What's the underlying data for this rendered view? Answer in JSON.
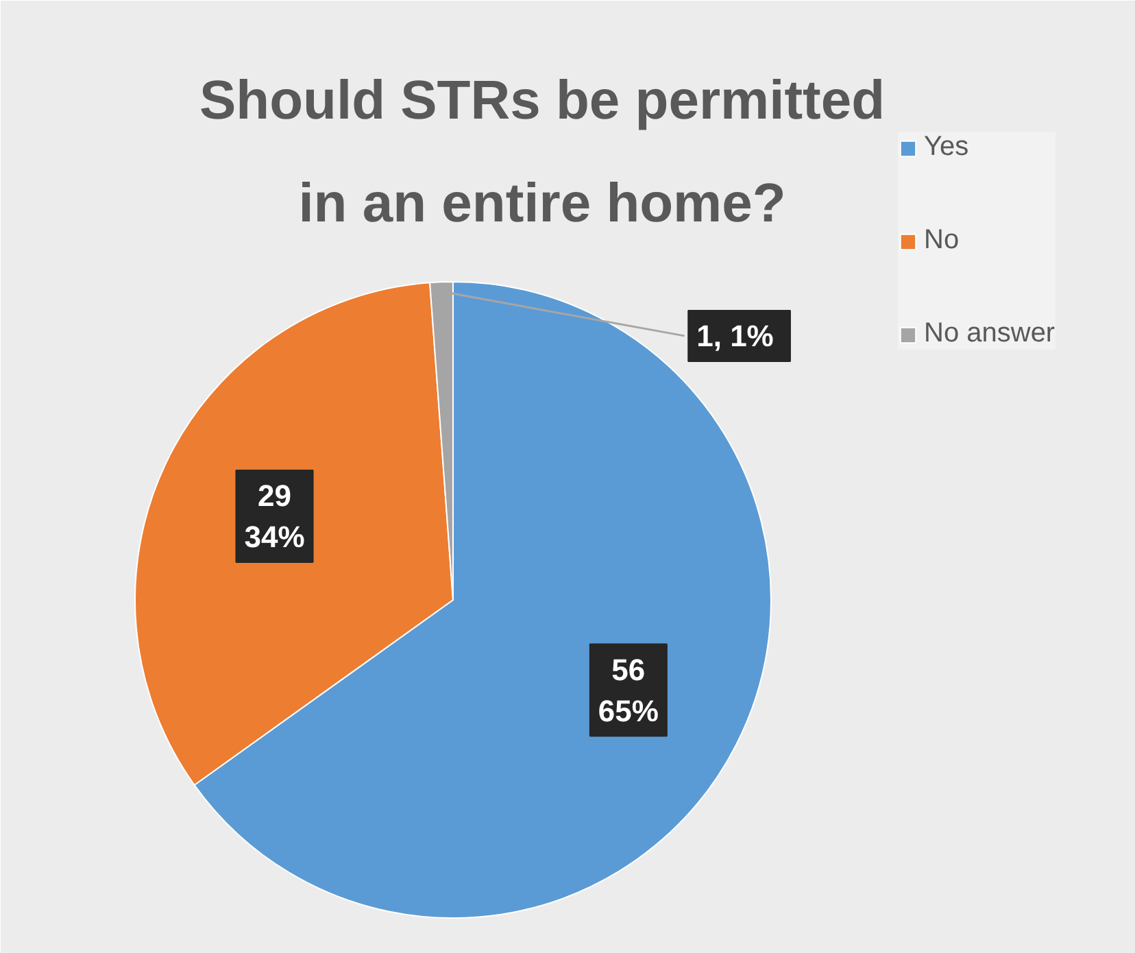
{
  "chart_data": {
    "type": "pie",
    "title": "Should STRs be permitted in an entire home?",
    "categories": [
      "Yes",
      "No",
      "No answer"
    ],
    "values": [
      56,
      29,
      1
    ],
    "colors": [
      "#5b9bd5",
      "#ed7d31",
      "#a5a5a5"
    ],
    "value_labels": [
      "56\n65%",
      "29\n34%",
      "1,  1%"
    ],
    "legend": "right"
  }
}
